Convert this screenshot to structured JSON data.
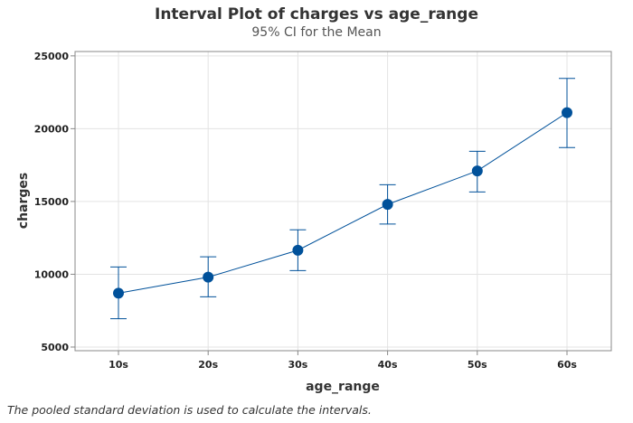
{
  "chart_data": {
    "type": "interval",
    "title": "Interval Plot of charges vs age_range",
    "subtitle": "95% CI for the Mean",
    "xlabel": "age_range",
    "ylabel": "charges",
    "categories": [
      "10s",
      "20s",
      "30s",
      "40s",
      "50s",
      "60s"
    ],
    "mean": [
      8700,
      9800,
      11650,
      14800,
      17100,
      21100
    ],
    "ci_lower": [
      6950,
      8450,
      10250,
      13450,
      15650,
      18700
    ],
    "ci_upper": [
      10500,
      11200,
      13050,
      16150,
      18450,
      23450
    ],
    "ylim": [
      4750,
      25300
    ],
    "yticks": [
      5000,
      10000,
      15000,
      20000,
      25000
    ],
    "grid": true,
    "color": "#00519A"
  },
  "footnote": "The pooled standard deviation is used to calculate the intervals."
}
